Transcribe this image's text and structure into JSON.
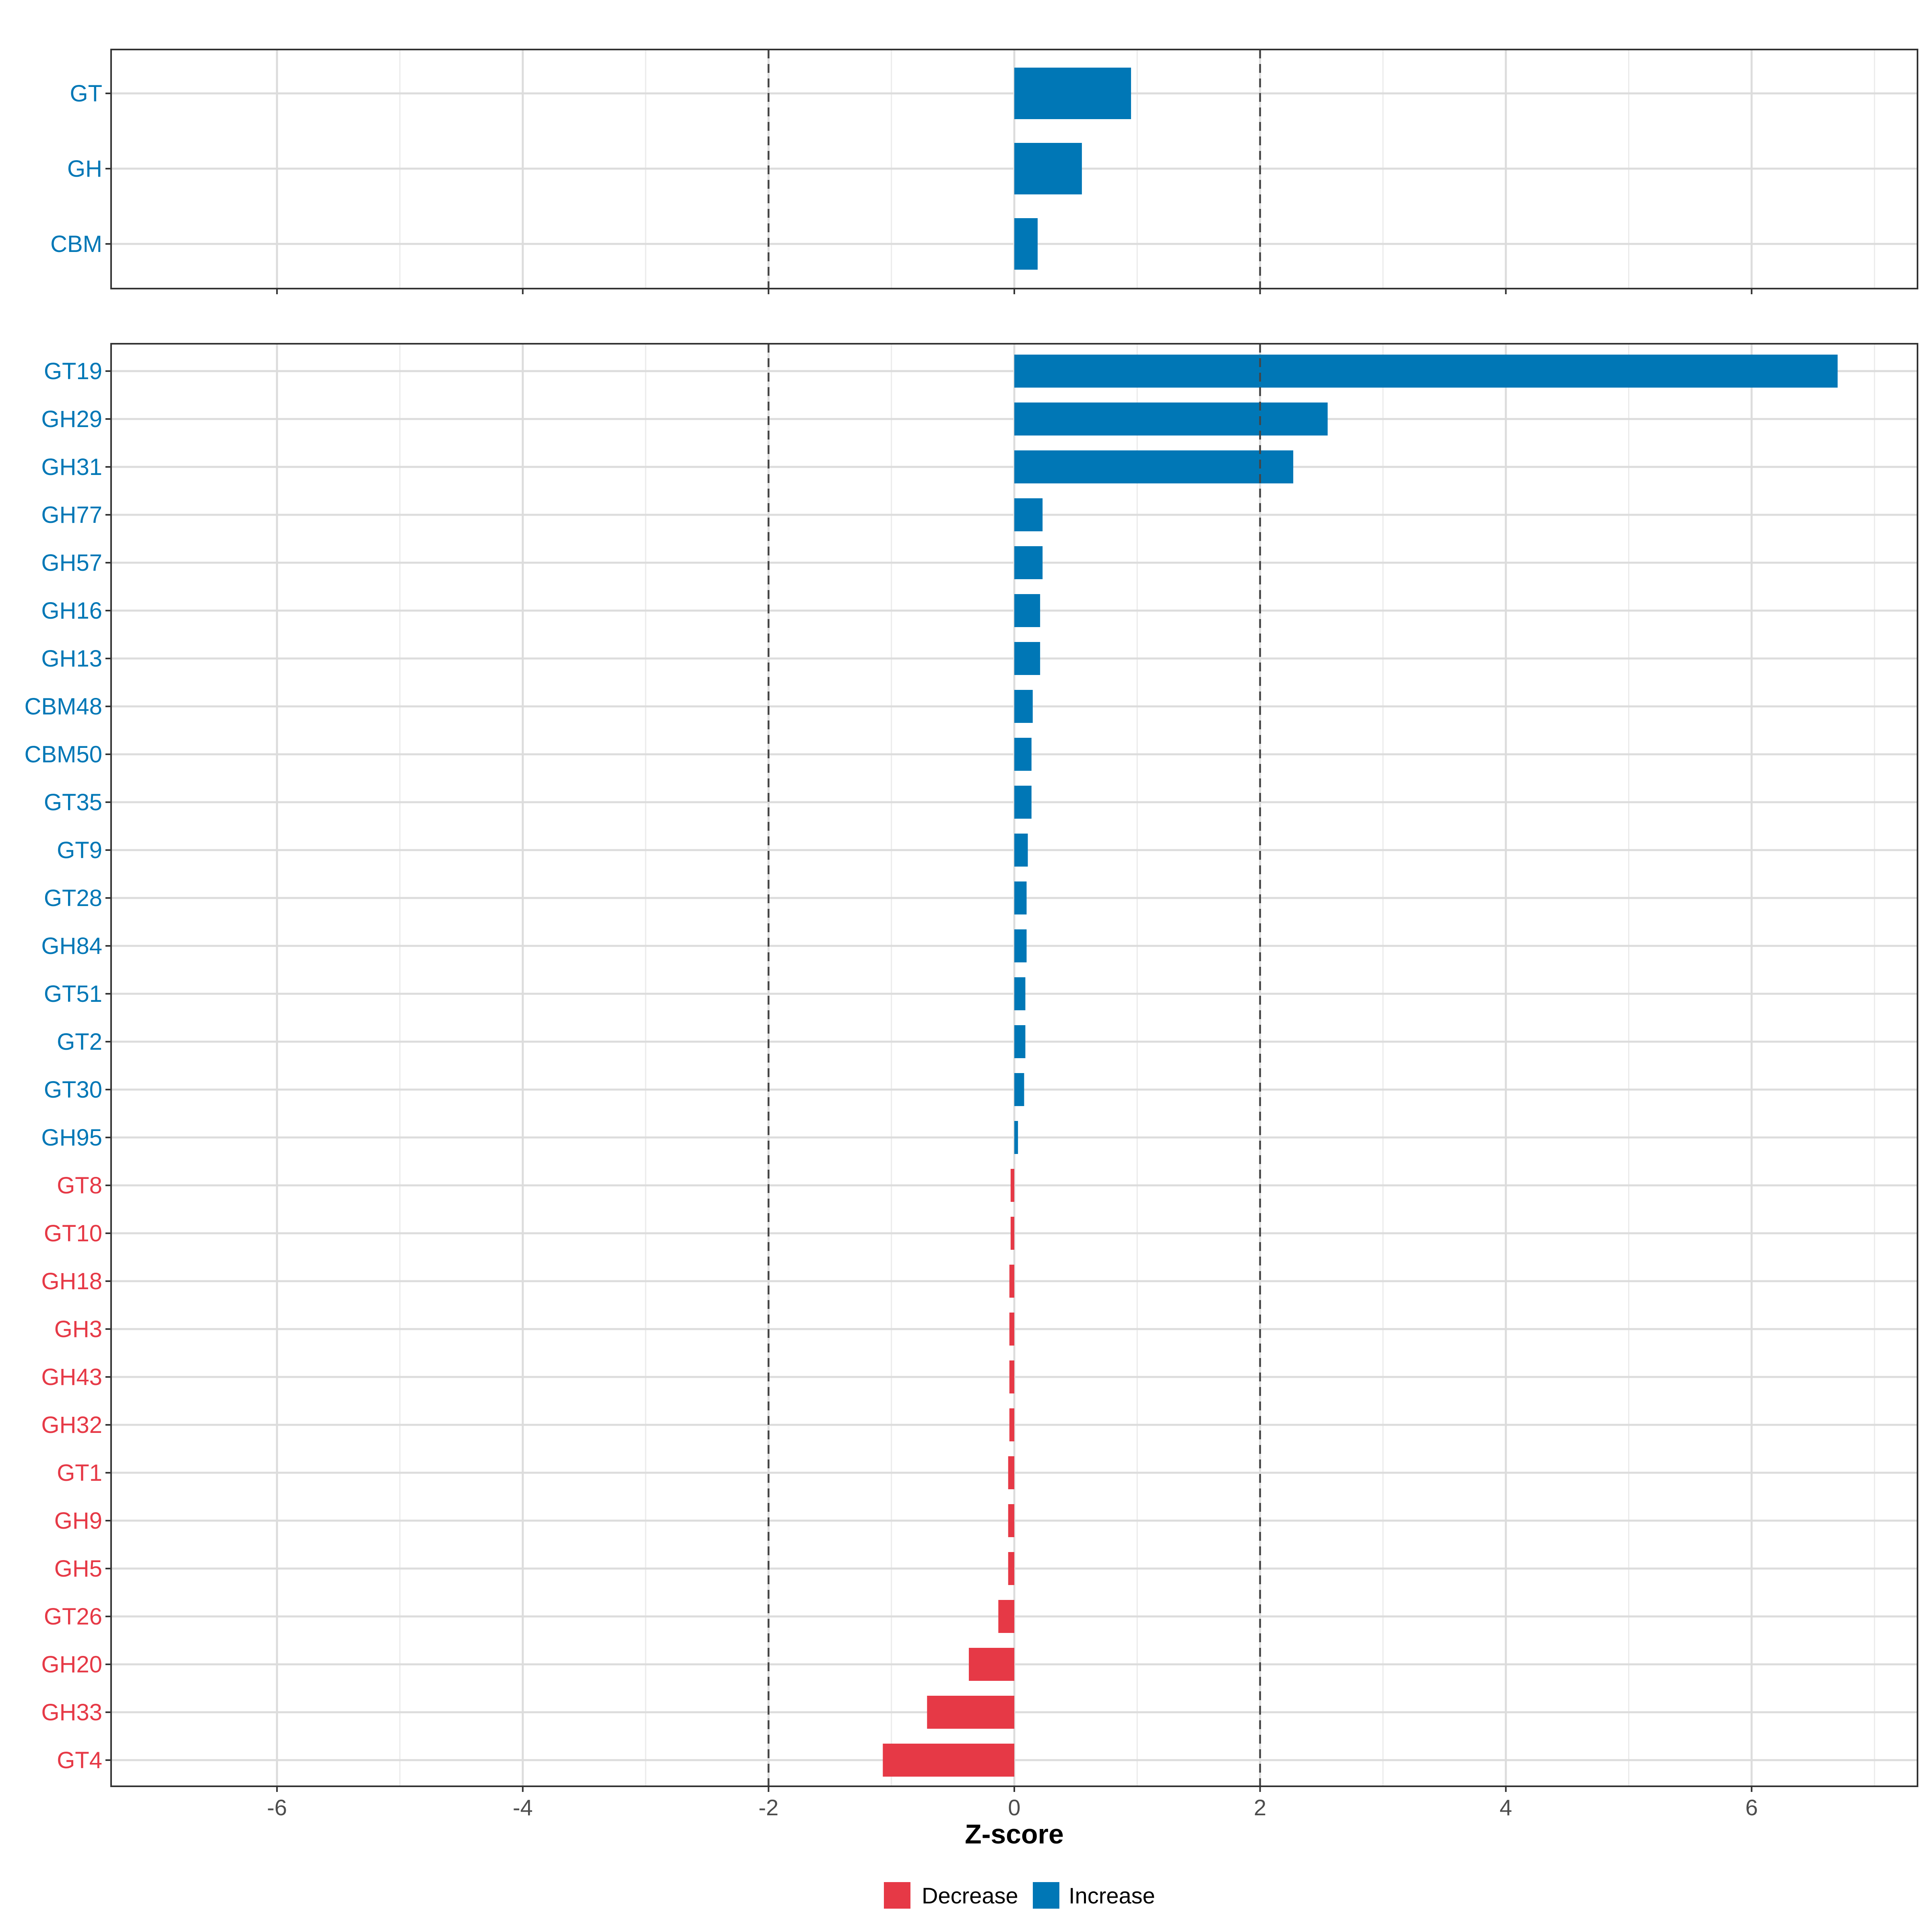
{
  "chart_data": {
    "type": "bar",
    "orientation": "horizontal",
    "xlabel": "Z-score",
    "xlim": [
      -7.35,
      7.35
    ],
    "xticks": [
      -6,
      -4,
      -2,
      0,
      2,
      4,
      6
    ],
    "minor_gridlines": [
      -5,
      -3,
      -1,
      1,
      3,
      5,
      7
    ],
    "threshold_lines": [
      -2,
      2
    ],
    "colors": {
      "Decrease": "#E63946",
      "Increase": "#0077B6"
    },
    "legend": {
      "position": "bottom",
      "entries": [
        {
          "label": "Decrease",
          "color": "#E63946"
        },
        {
          "label": "Increase",
          "color": "#0077B6"
        }
      ]
    },
    "panels": [
      {
        "name": "top",
        "categories": [
          "GT",
          "GH",
          "CBM"
        ],
        "values": [
          0.95,
          0.55,
          0.19
        ]
      },
      {
        "name": "bottom",
        "categories": [
          "GT19",
          "GH29",
          "GH31",
          "GH77",
          "GH57",
          "GH16",
          "GH13",
          "CBM48",
          "CBM50",
          "GT35",
          "GT9",
          "GT28",
          "GH84",
          "GT51",
          "GT2",
          "GT30",
          "GH95",
          "GT8",
          "GT10",
          "GH18",
          "GH3",
          "GH43",
          "GH32",
          "GT1",
          "GH9",
          "GH5",
          "GT26",
          "GH20",
          "GH33",
          "GT4"
        ],
        "values": [
          6.7,
          2.55,
          2.27,
          0.23,
          0.23,
          0.21,
          0.21,
          0.15,
          0.14,
          0.14,
          0.11,
          0.1,
          0.1,
          0.09,
          0.09,
          0.08,
          0.03,
          -0.03,
          -0.03,
          -0.04,
          -0.04,
          -0.04,
          -0.04,
          -0.05,
          -0.05,
          -0.05,
          -0.13,
          -0.37,
          -0.71,
          -1.07
        ]
      }
    ]
  }
}
